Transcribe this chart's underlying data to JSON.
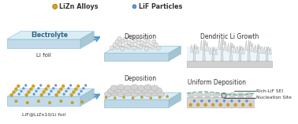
{
  "bg_color": "#ffffff",
  "legend_lizn_color": "#d4a017",
  "legend_lif_color": "#6699cc",
  "legend_lizn_label": "LiZn Alloys",
  "legend_lif_label": "LiF Particles",
  "top_left_label": "Electrolyte",
  "top_left_sublabel": "Li foil",
  "top_mid_label": "Deposition",
  "top_right_label": "Dendritic Li Growth",
  "bot_left_sublabel": "LiF@LiZn10/Li foil",
  "bot_mid_label": "Deposition",
  "bot_right_label": "Uniform Deposition",
  "bot_right_sub1": "Rich-LiF SEI",
  "bot_right_sub2": "Nucleation Site",
  "foil_top_color": "#d4ecf7",
  "foil_top_side": "#b8d4e6",
  "foil_top_right": "#9bbece",
  "foil_bot_color": "#d4ecf7",
  "dep_top_color": "#d8d8d8",
  "dep_side_color": "#c0c0c0",
  "dep_right_color": "#b0b0b0",
  "sei_color": "#55bb55",
  "arrow_color": "#5599cc",
  "text_color": "#333333",
  "dendrite_fill": "#e8e8e8",
  "dendrite_edge": "#aaaaaa",
  "sphere_fill": "#e0e0e0",
  "sphere_edge": "#aaaaaa",
  "bump_fill": "#d4d4d4",
  "bump_edge": "#aaaaaa",
  "lizn_color": "#d4a017",
  "lif_color": "#6699cc",
  "cross_base_color": "#d8d8d8",
  "cross_sei_color": "#55bb88"
}
